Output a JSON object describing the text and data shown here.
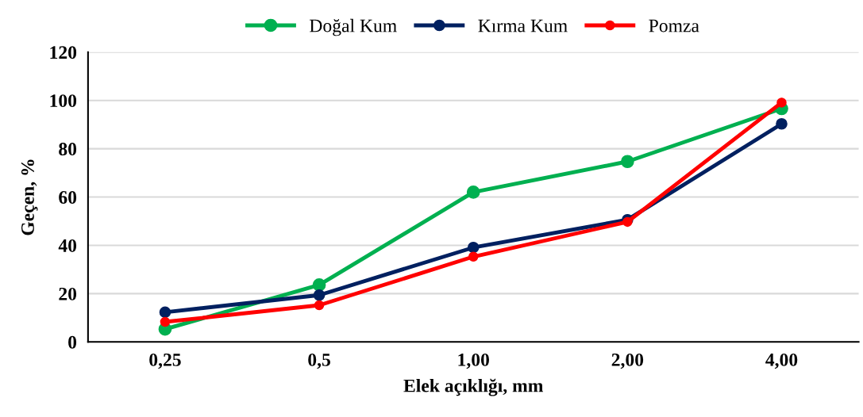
{
  "chart_data": {
    "type": "line",
    "xlabel": "Elek açıklığı, mm",
    "ylabel": "Geçen, %",
    "categories": [
      "0,25",
      "0,5",
      "1,00",
      "2,00",
      "4,00"
    ],
    "series": [
      {
        "name": "Doğal Kum",
        "color": "#00b050",
        "values": [
          5.3,
          23.6,
          62,
          74.7,
          96.6
        ]
      },
      {
        "name": "Kırma Kum",
        "color": "#002060",
        "values": [
          12.3,
          19.4,
          39.1,
          50.6,
          90.3
        ]
      },
      {
        "name": "Pomza",
        "color": "#ff0000",
        "values": [
          8.3,
          15.2,
          35.3,
          49.7,
          99.1
        ]
      }
    ],
    "ylim": [
      0,
      120
    ],
    "yticks": [
      0,
      20,
      40,
      60,
      80,
      100,
      120
    ],
    "grid": "y",
    "legend": "top",
    "marker": "circle",
    "line_style": "solid"
  }
}
